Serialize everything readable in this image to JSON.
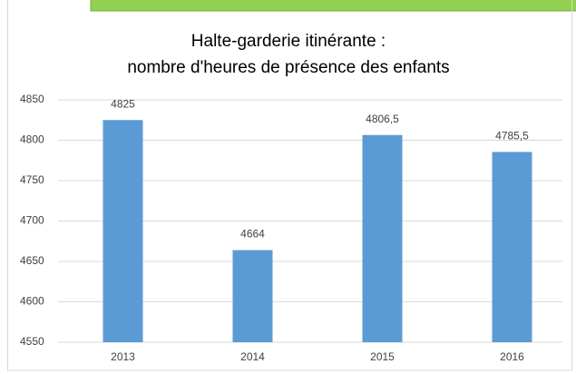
{
  "chart_data": {
    "type": "bar",
    "title_lines": [
      "Halte-garderie itinérante :",
      "nombre d'heures de présence des enfants"
    ],
    "categories": [
      "2013",
      "2014",
      "2015",
      "2016"
    ],
    "values": [
      4825,
      4664,
      4806.5,
      4785.5
    ],
    "value_labels": [
      "4825",
      "4664",
      "4806,5",
      "4785,5"
    ],
    "color": "#5b9bd5",
    "ylim": [
      4550,
      4850
    ],
    "yticks": [
      4550,
      4600,
      4650,
      4700,
      4750,
      4800,
      4850
    ],
    "grid": true
  }
}
